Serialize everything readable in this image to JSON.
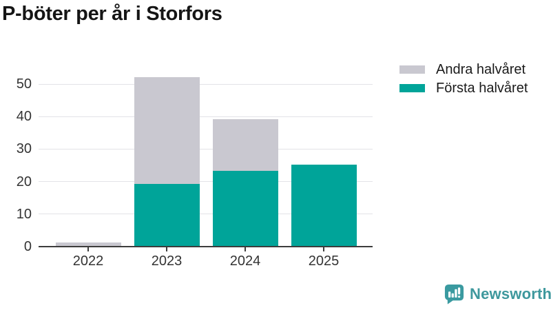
{
  "title": "P-böter per år i Storfors",
  "legend": {
    "items": [
      {
        "label": "Andra halvåret",
        "color": "#c9c8d0"
      },
      {
        "label": "Första halvåret",
        "color": "#00a499"
      }
    ]
  },
  "branding": {
    "wordmark": "Newsworthy",
    "icon": "newsworthy-speech-bubble-bar-chart-icon",
    "color": "#3e989d",
    "icon_color": "#3a9aa0"
  },
  "chart_data": {
    "type": "bar",
    "stacked": true,
    "title": "P-böter per år i Storfors",
    "categories": [
      "2022",
      "2023",
      "2024",
      "2025"
    ],
    "series": [
      {
        "name": "Första halvåret",
        "color": "#00a499",
        "values": [
          0,
          19,
          23,
          25
        ]
      },
      {
        "name": "Andra halvåret",
        "color": "#c9c8d0",
        "values": [
          1,
          33,
          16,
          0
        ]
      }
    ],
    "totals": [
      1,
      52,
      39,
      25
    ],
    "y_ticks": [
      0,
      10,
      20,
      30,
      40,
      50
    ],
    "ylim": [
      0,
      56
    ],
    "xlabel": "",
    "ylabel": "",
    "grid": "horizontal",
    "legend_position": "top-right",
    "axis_line_color": "#3c3c3c",
    "grid_line_color": "#e3e3e7",
    "tick_text_color": "#333333"
  }
}
